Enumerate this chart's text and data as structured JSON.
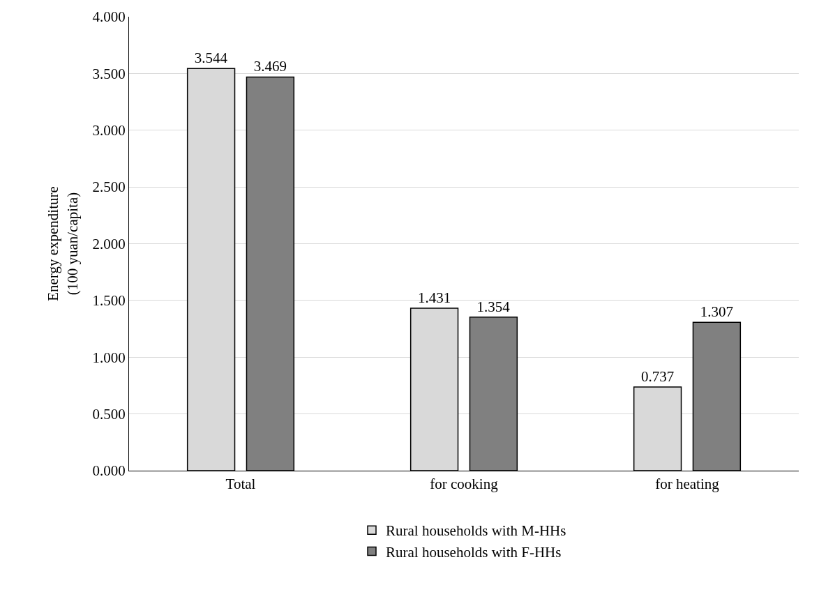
{
  "chart_data": {
    "type": "bar",
    "ylabel": "Energy expenditure\n(100 yuan/capita)",
    "categories": [
      "Total",
      "for cooking",
      "for heating"
    ],
    "series": [
      {
        "name": "Rural households with M-HHs",
        "color": "#d9d9d9",
        "values": [
          3.544,
          1.431,
          0.737
        ]
      },
      {
        "name": "Rural households with F-HHs",
        "color": "#808080",
        "values": [
          3.469,
          1.354,
          1.307
        ]
      }
    ],
    "ylim": [
      0,
      4
    ],
    "yticks": [
      {
        "value": 0,
        "label": "0.000"
      },
      {
        "value": 0.5,
        "label": "0.500"
      },
      {
        "value": 1,
        "label": "1.000"
      },
      {
        "value": 1.5,
        "label": "1.500"
      },
      {
        "value": 2,
        "label": "2.000"
      },
      {
        "value": 2.5,
        "label": "2.500"
      },
      {
        "value": 3,
        "label": "3.000"
      },
      {
        "value": 3.5,
        "label": "3.500"
      },
      {
        "value": 4,
        "label": "4.000"
      }
    ],
    "grid": "y",
    "legend": "bottom",
    "data_labels": true
  }
}
